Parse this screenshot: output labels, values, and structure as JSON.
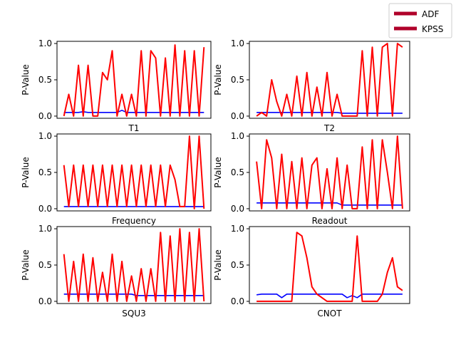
{
  "legend": {
    "position": "top-right",
    "entries": [
      {
        "label": "ADF",
        "color": "#b0002a"
      },
      {
        "label": "KPSS",
        "color": "#b0002a"
      }
    ]
  },
  "colors": {
    "adf": "#0000ff",
    "kpss": "#ff0000",
    "axis": "#000000"
  },
  "chart_data": [
    {
      "type": "line",
      "xlabel": "T1",
      "ylabel": "P-Value",
      "ylim": [
        -0.03,
        1.03
      ],
      "yticks": [
        {
          "v": 0.0,
          "label": "0.0"
        },
        {
          "v": 0.5,
          "label": "0.5"
        },
        {
          "v": 1.0,
          "label": "1.0"
        }
      ],
      "series": [
        {
          "name": "ADF",
          "values": [
            0.05,
            0.05,
            0.05,
            0.05,
            0.06,
            0.05,
            0.05,
            0.05,
            0.05,
            0.05,
            0.05,
            0.05,
            0.08,
            0.05,
            0.05,
            0.05,
            0.05,
            0.05,
            0.05,
            0.05,
            0.05,
            0.05,
            0.05,
            0.05,
            0.05,
            0.05,
            0.05,
            0.05,
            0.05,
            0.05
          ]
        },
        {
          "name": "KPSS",
          "values": [
            0.0,
            0.3,
            0.0,
            0.7,
            0.0,
            0.7,
            0.0,
            0.0,
            0.6,
            0.5,
            0.9,
            0.0,
            0.3,
            0.0,
            0.3,
            0.0,
            0.9,
            0.0,
            0.9,
            0.8,
            0.0,
            0.8,
            0.0,
            0.98,
            0.0,
            0.9,
            0.0,
            0.9,
            0.0,
            0.95
          ]
        }
      ]
    },
    {
      "type": "line",
      "xlabel": "T2",
      "ylabel": "P-Value",
      "ylim": [
        -0.03,
        1.03
      ],
      "yticks": [
        {
          "v": 0.0,
          "label": "0.0"
        },
        {
          "v": 0.5,
          "label": "0.5"
        },
        {
          "v": 1.0,
          "label": "1.0"
        }
      ],
      "series": [
        {
          "name": "ADF",
          "values": [
            0.05,
            0.05,
            0.05,
            0.05,
            0.05,
            0.05,
            0.05,
            0.05,
            0.05,
            0.05,
            0.05,
            0.05,
            0.05,
            0.05,
            0.05,
            0.05,
            0.05,
            0.04,
            0.04,
            0.04,
            0.04,
            0.04,
            0.04,
            0.04,
            0.04,
            0.04,
            0.04,
            0.04,
            0.04,
            0.04
          ]
        },
        {
          "name": "KPSS",
          "values": [
            0.0,
            0.05,
            0.0,
            0.5,
            0.2,
            0.0,
            0.3,
            0.0,
            0.55,
            0.0,
            0.6,
            0.0,
            0.4,
            0.0,
            0.6,
            0.0,
            0.3,
            0.0,
            0.0,
            0.0,
            0.0,
            0.9,
            0.0,
            0.95,
            0.0,
            0.95,
            1.0,
            0.0,
            1.0,
            0.95
          ]
        }
      ]
    },
    {
      "type": "line",
      "xlabel": "Frequency",
      "ylabel": "P-Value",
      "ylim": [
        -0.03,
        1.03
      ],
      "yticks": [
        {
          "v": 0.0,
          "label": "0.0"
        },
        {
          "v": 0.5,
          "label": "0.5"
        },
        {
          "v": 1.0,
          "label": "1.0"
        }
      ],
      "series": [
        {
          "name": "ADF",
          "values": [
            0.03,
            0.03,
            0.03,
            0.03,
            0.03,
            0.03,
            0.03,
            0.03,
            0.03,
            0.03,
            0.03,
            0.03,
            0.03,
            0.03,
            0.03,
            0.03,
            0.03,
            0.03,
            0.03,
            0.03,
            0.03,
            0.03,
            0.03,
            0.03,
            0.03,
            0.03,
            0.03,
            0.03,
            0.03,
            0.03
          ]
        },
        {
          "name": "KPSS",
          "values": [
            0.6,
            0.03,
            0.6,
            0.03,
            0.6,
            0.03,
            0.6,
            0.03,
            0.6,
            0.03,
            0.6,
            0.03,
            0.6,
            0.03,
            0.6,
            0.03,
            0.6,
            0.03,
            0.6,
            0.03,
            0.6,
            0.03,
            0.6,
            0.4,
            0.03,
            0.03,
            1.0,
            0.0,
            1.0,
            0.0
          ]
        }
      ]
    },
    {
      "type": "line",
      "xlabel": "Readout",
      "ylabel": "P-Value",
      "ylim": [
        -0.03,
        1.03
      ],
      "yticks": [
        {
          "v": 0.0,
          "label": "0.0"
        },
        {
          "v": 0.5,
          "label": "0.5"
        },
        {
          "v": 1.0,
          "label": "1.0"
        }
      ],
      "series": [
        {
          "name": "ADF",
          "values": [
            0.08,
            0.08,
            0.08,
            0.08,
            0.08,
            0.08,
            0.08,
            0.08,
            0.08,
            0.08,
            0.08,
            0.08,
            0.08,
            0.08,
            0.08,
            0.08,
            0.08,
            0.05,
            0.05,
            0.05,
            0.05,
            0.05,
            0.05,
            0.05,
            0.05,
            0.05,
            0.05,
            0.05,
            0.05,
            0.05
          ]
        },
        {
          "name": "KPSS",
          "values": [
            0.65,
            0.0,
            0.95,
            0.7,
            0.0,
            0.75,
            0.0,
            0.65,
            0.0,
            0.7,
            0.0,
            0.6,
            0.7,
            0.0,
            0.55,
            0.0,
            0.7,
            0.0,
            0.6,
            0.0,
            0.0,
            0.85,
            0.0,
            0.95,
            0.0,
            0.95,
            0.5,
            0.0,
            1.0,
            0.0
          ]
        }
      ]
    },
    {
      "type": "line",
      "xlabel": "SQU3",
      "ylabel": "P-Value",
      "ylim": [
        -0.03,
        1.03
      ],
      "yticks": [
        {
          "v": 0.0,
          "label": "0.0"
        },
        {
          "v": 0.5,
          "label": "0.5"
        },
        {
          "v": 1.0,
          "label": "1.0"
        }
      ],
      "series": [
        {
          "name": "ADF",
          "values": [
            0.1,
            0.1,
            0.1,
            0.1,
            0.1,
            0.1,
            0.1,
            0.1,
            0.1,
            0.1,
            0.1,
            0.1,
            0.1,
            0.1,
            0.1,
            0.08,
            0.08,
            0.08,
            0.08,
            0.08,
            0.08,
            0.08,
            0.08,
            0.08,
            0.08,
            0.08,
            0.08,
            0.08,
            0.08,
            0.08
          ]
        },
        {
          "name": "KPSS",
          "values": [
            0.65,
            0.0,
            0.55,
            0.0,
            0.65,
            0.0,
            0.6,
            0.0,
            0.4,
            0.0,
            0.65,
            0.0,
            0.55,
            0.0,
            0.35,
            0.0,
            0.45,
            0.0,
            0.45,
            0.0,
            0.95,
            0.0,
            0.9,
            0.0,
            1.0,
            0.0,
            0.95,
            0.0,
            1.0,
            0.0
          ]
        }
      ]
    },
    {
      "type": "line",
      "xlabel": "CNOT",
      "ylabel": "P-Value",
      "ylim": [
        -0.03,
        1.03
      ],
      "yticks": [
        {
          "v": 0.0,
          "label": "0.0"
        },
        {
          "v": 0.5,
          "label": "0.5"
        },
        {
          "v": 1.0,
          "label": "1.0"
        }
      ],
      "series": [
        {
          "name": "ADF",
          "values": [
            0.09,
            0.1,
            0.1,
            0.1,
            0.1,
            0.05,
            0.1,
            0.1,
            0.1,
            0.1,
            0.1,
            0.1,
            0.1,
            0.1,
            0.1,
            0.1,
            0.1,
            0.1,
            0.05,
            0.08,
            0.05,
            0.1,
            0.1,
            0.1,
            0.1,
            0.1,
            0.1,
            0.1,
            0.1,
            0.1
          ]
        },
        {
          "name": "KPSS",
          "values": [
            0.0,
            0.0,
            0.0,
            0.0,
            0.0,
            0.0,
            0.0,
            0.0,
            0.95,
            0.9,
            0.6,
            0.2,
            0.1,
            0.05,
            0.0,
            0.0,
            0.0,
            0.0,
            0.0,
            0.0,
            0.9,
            0.0,
            0.0,
            0.0,
            0.0,
            0.1,
            0.4,
            0.6,
            0.2,
            0.15
          ]
        }
      ]
    }
  ]
}
